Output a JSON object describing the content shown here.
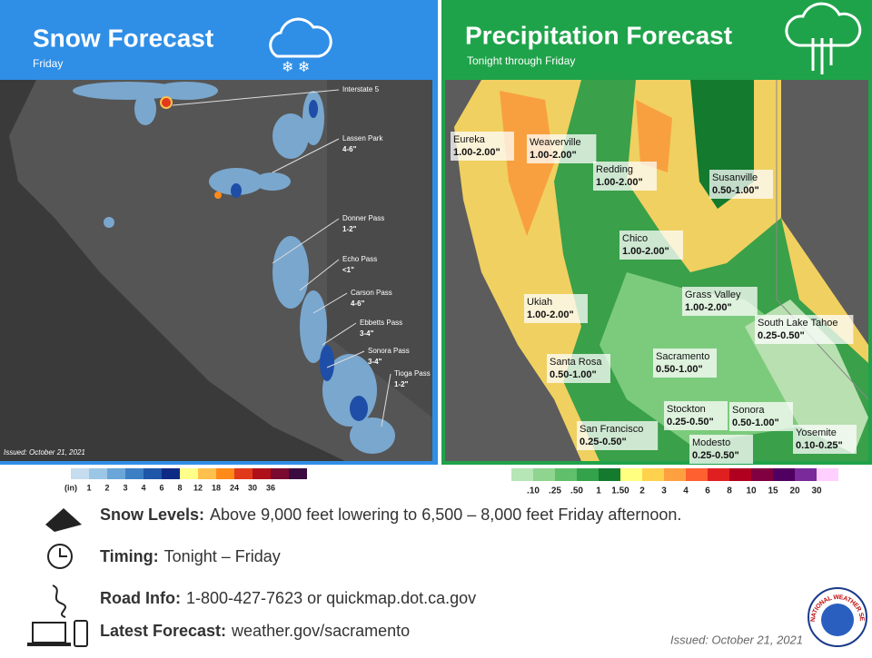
{
  "snow_panel": {
    "title": "Snow Forecast",
    "subtitle": "Friday",
    "labels": [
      {
        "name": "Interstate 5"
      },
      {
        "name": "Lassen Park",
        "amount": "4-6\""
      },
      {
        "name": "Donner Pass",
        "amount": "1-2\""
      },
      {
        "name": "Echo Pass",
        "amount": "<1\""
      },
      {
        "name": "Carson Pass",
        "amount": "4-6\""
      },
      {
        "name": "Ebbetts Pass",
        "amount": "3-4\""
      },
      {
        "name": "Sonora Pass",
        "amount": "3-4\""
      },
      {
        "name": "Tioga Pass",
        "amount": "1-2\""
      }
    ],
    "issued": "Issued: October 21, 2021",
    "legend": {
      "labels": [
        "(in)",
        "1",
        "2",
        "3",
        "4",
        "6",
        "8",
        "12",
        "18",
        "24",
        "30",
        "36"
      ],
      "colors": [
        "#c6dcef",
        "#9cc6e5",
        "#6aa6d8",
        "#3d7fc4",
        "#1e56a8",
        "#0d2b86",
        "#ffff8a",
        "#ffc04d",
        "#ff8a1a",
        "#e03a1a",
        "#b0101a",
        "#7a0a30",
        "#3a0a40"
      ]
    }
  },
  "precip_panel": {
    "title": "Precipitation Forecast",
    "subtitle": "Tonight through Friday",
    "labels": [
      {
        "name": "Eureka",
        "amount": "1.00-2.00\""
      },
      {
        "name": "Weaverville",
        "amount": "1.00-2.00\""
      },
      {
        "name": "Redding",
        "amount": "1.00-2.00\""
      },
      {
        "name": "Susanville",
        "amount": "0.50-1.00\""
      },
      {
        "name": "Chico",
        "amount": "1.00-2.00\""
      },
      {
        "name": "Ukiah",
        "amount": "1.00-2.00\""
      },
      {
        "name": "Grass Valley",
        "amount": "1.00-2.00\""
      },
      {
        "name": "South Lake Tahoe",
        "amount": "0.25-0.50\""
      },
      {
        "name": "Santa Rosa",
        "amount": "0.50-1.00\""
      },
      {
        "name": "Sacramento",
        "amount": "0.50-1.00\""
      },
      {
        "name": "Stockton",
        "amount": "0.25-0.50\""
      },
      {
        "name": "Sonora",
        "amount": "0.50-1.00\""
      },
      {
        "name": "San Francisco",
        "amount": "0.25-0.50\""
      },
      {
        "name": "Modesto",
        "amount": "0.25-0.50\""
      },
      {
        "name": "Yosemite",
        "amount": "0.10-0.25\""
      }
    ],
    "legend": {
      "labels": [
        ".10",
        ".25",
        ".50",
        "1",
        "1.50",
        "2",
        "3",
        "4",
        "6",
        "8",
        "10",
        "15",
        "20",
        "30"
      ],
      "colors": [
        "#b6e5b6",
        "#8fd48f",
        "#5fbf6a",
        "#34a24a",
        "#137a2e",
        "#ffff80",
        "#ffd24d",
        "#ffa040",
        "#ff6030",
        "#e02020",
        "#b00020",
        "#800040",
        "#500060",
        "#7a2a9a",
        "#ffd0ff"
      ]
    }
  },
  "info": [
    {
      "label": "Snow Levels:",
      "text": "Above 9,000 feet lowering to 6,500 – 8,000 feet Friday afternoon."
    },
    {
      "label": "Timing:",
      "text": "Tonight – Friday"
    },
    {
      "label": "Road Info:",
      "text": "1-800-427-7623  or quickmap.dot.ca.gov"
    },
    {
      "label": "Latest Forecast:",
      "text": "weather.gov/sacramento"
    }
  ],
  "footer": {
    "issued": "Issued: October 21, 2021"
  },
  "logo": {
    "text": "NATIONAL WEATHER SERVICE"
  }
}
